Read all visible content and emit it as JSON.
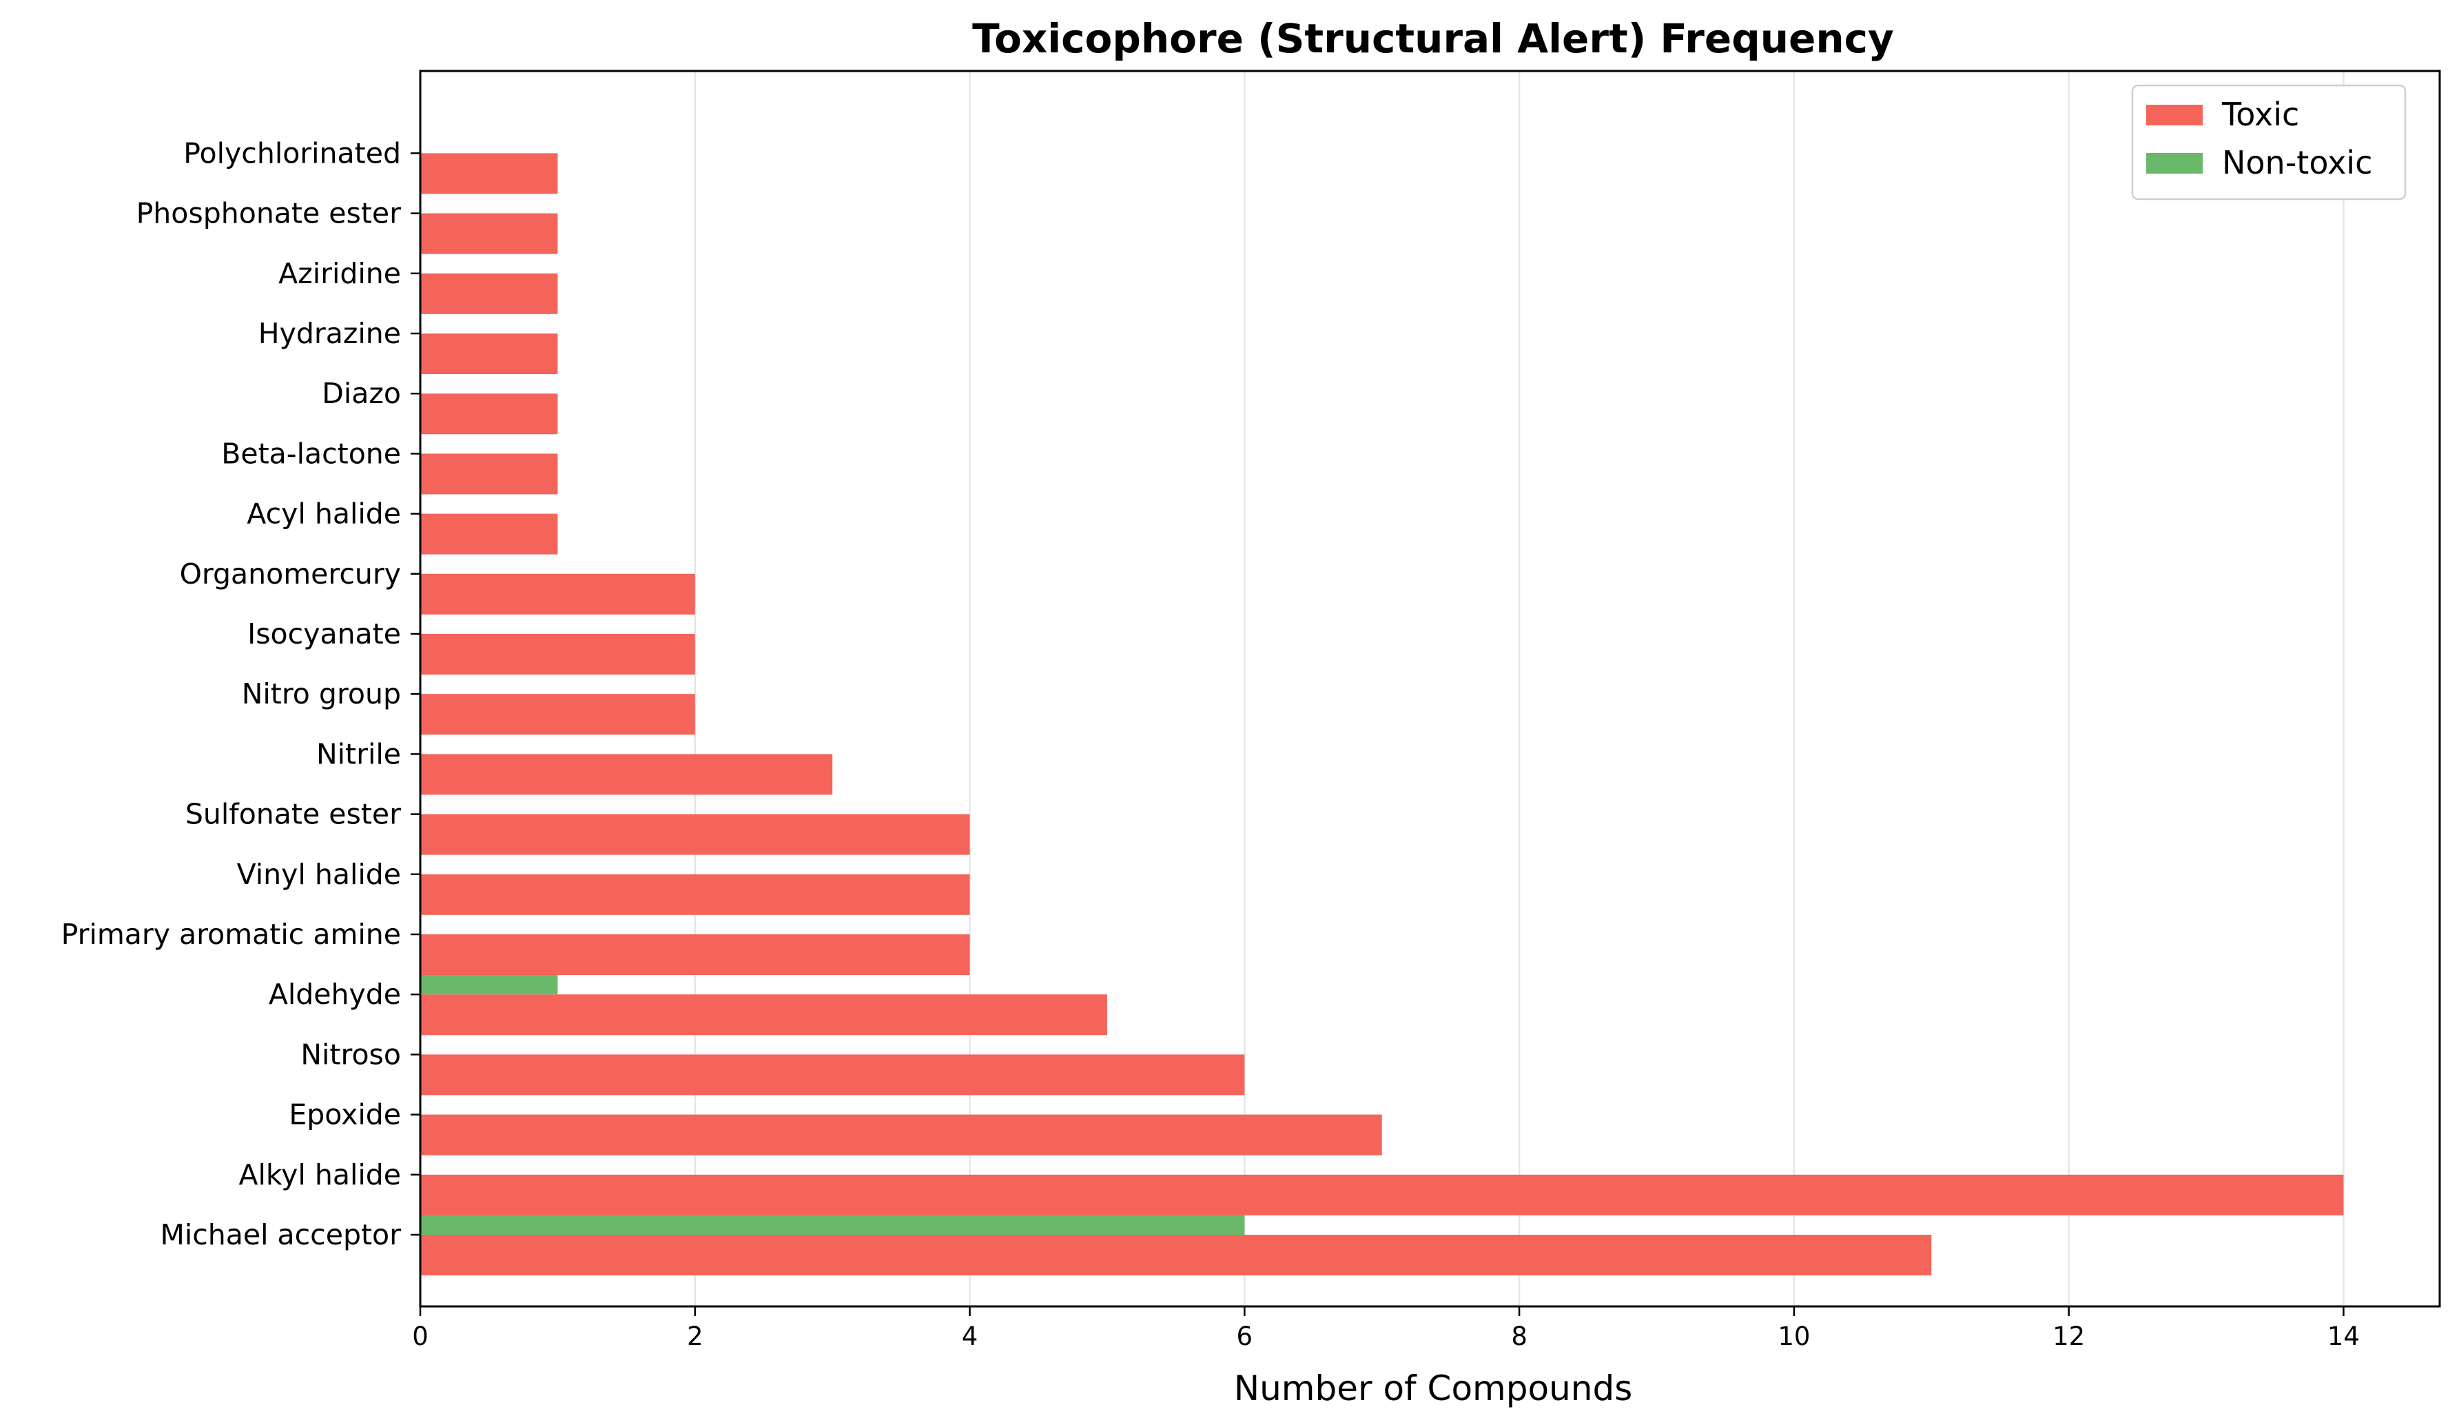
{
  "chart_data": {
    "type": "bar",
    "orientation": "horizontal",
    "grouped": true,
    "title": "Toxicophore (Structural Alert) Frequency",
    "xlabel": "Number of Compounds",
    "ylabel": "",
    "xlim": [
      0,
      14.7
    ],
    "xticks": [
      0,
      2,
      4,
      6,
      8,
      10,
      12,
      14
    ],
    "grid": "x-axis vertical gridlines",
    "legend_position": "top-right",
    "categories": [
      "Michael acceptor",
      "Alkyl halide",
      "Epoxide",
      "Nitroso",
      "Aldehyde",
      "Primary aromatic amine",
      "Vinyl halide",
      "Sulfonate ester",
      "Nitrile",
      "Nitro group",
      "Isocyanate",
      "Organomercury",
      "Acyl halide",
      "Beta-lactone",
      "Diazo",
      "Hydrazine",
      "Aziridine",
      "Phosphonate ester",
      "Polychlorinated"
    ],
    "series": [
      {
        "name": "Toxic",
        "color": "#f4645a",
        "values": [
          11,
          14,
          7,
          6,
          5,
          4,
          4,
          4,
          3,
          2,
          2,
          2,
          1,
          1,
          1,
          1,
          1,
          1,
          1
        ]
      },
      {
        "name": "Non-toxic",
        "color": "#6ab96a",
        "values": [
          6,
          0,
          0,
          0,
          1,
          0,
          0,
          0,
          0,
          0,
          0,
          0,
          0,
          0,
          0,
          0,
          0,
          0,
          0
        ]
      }
    ]
  }
}
